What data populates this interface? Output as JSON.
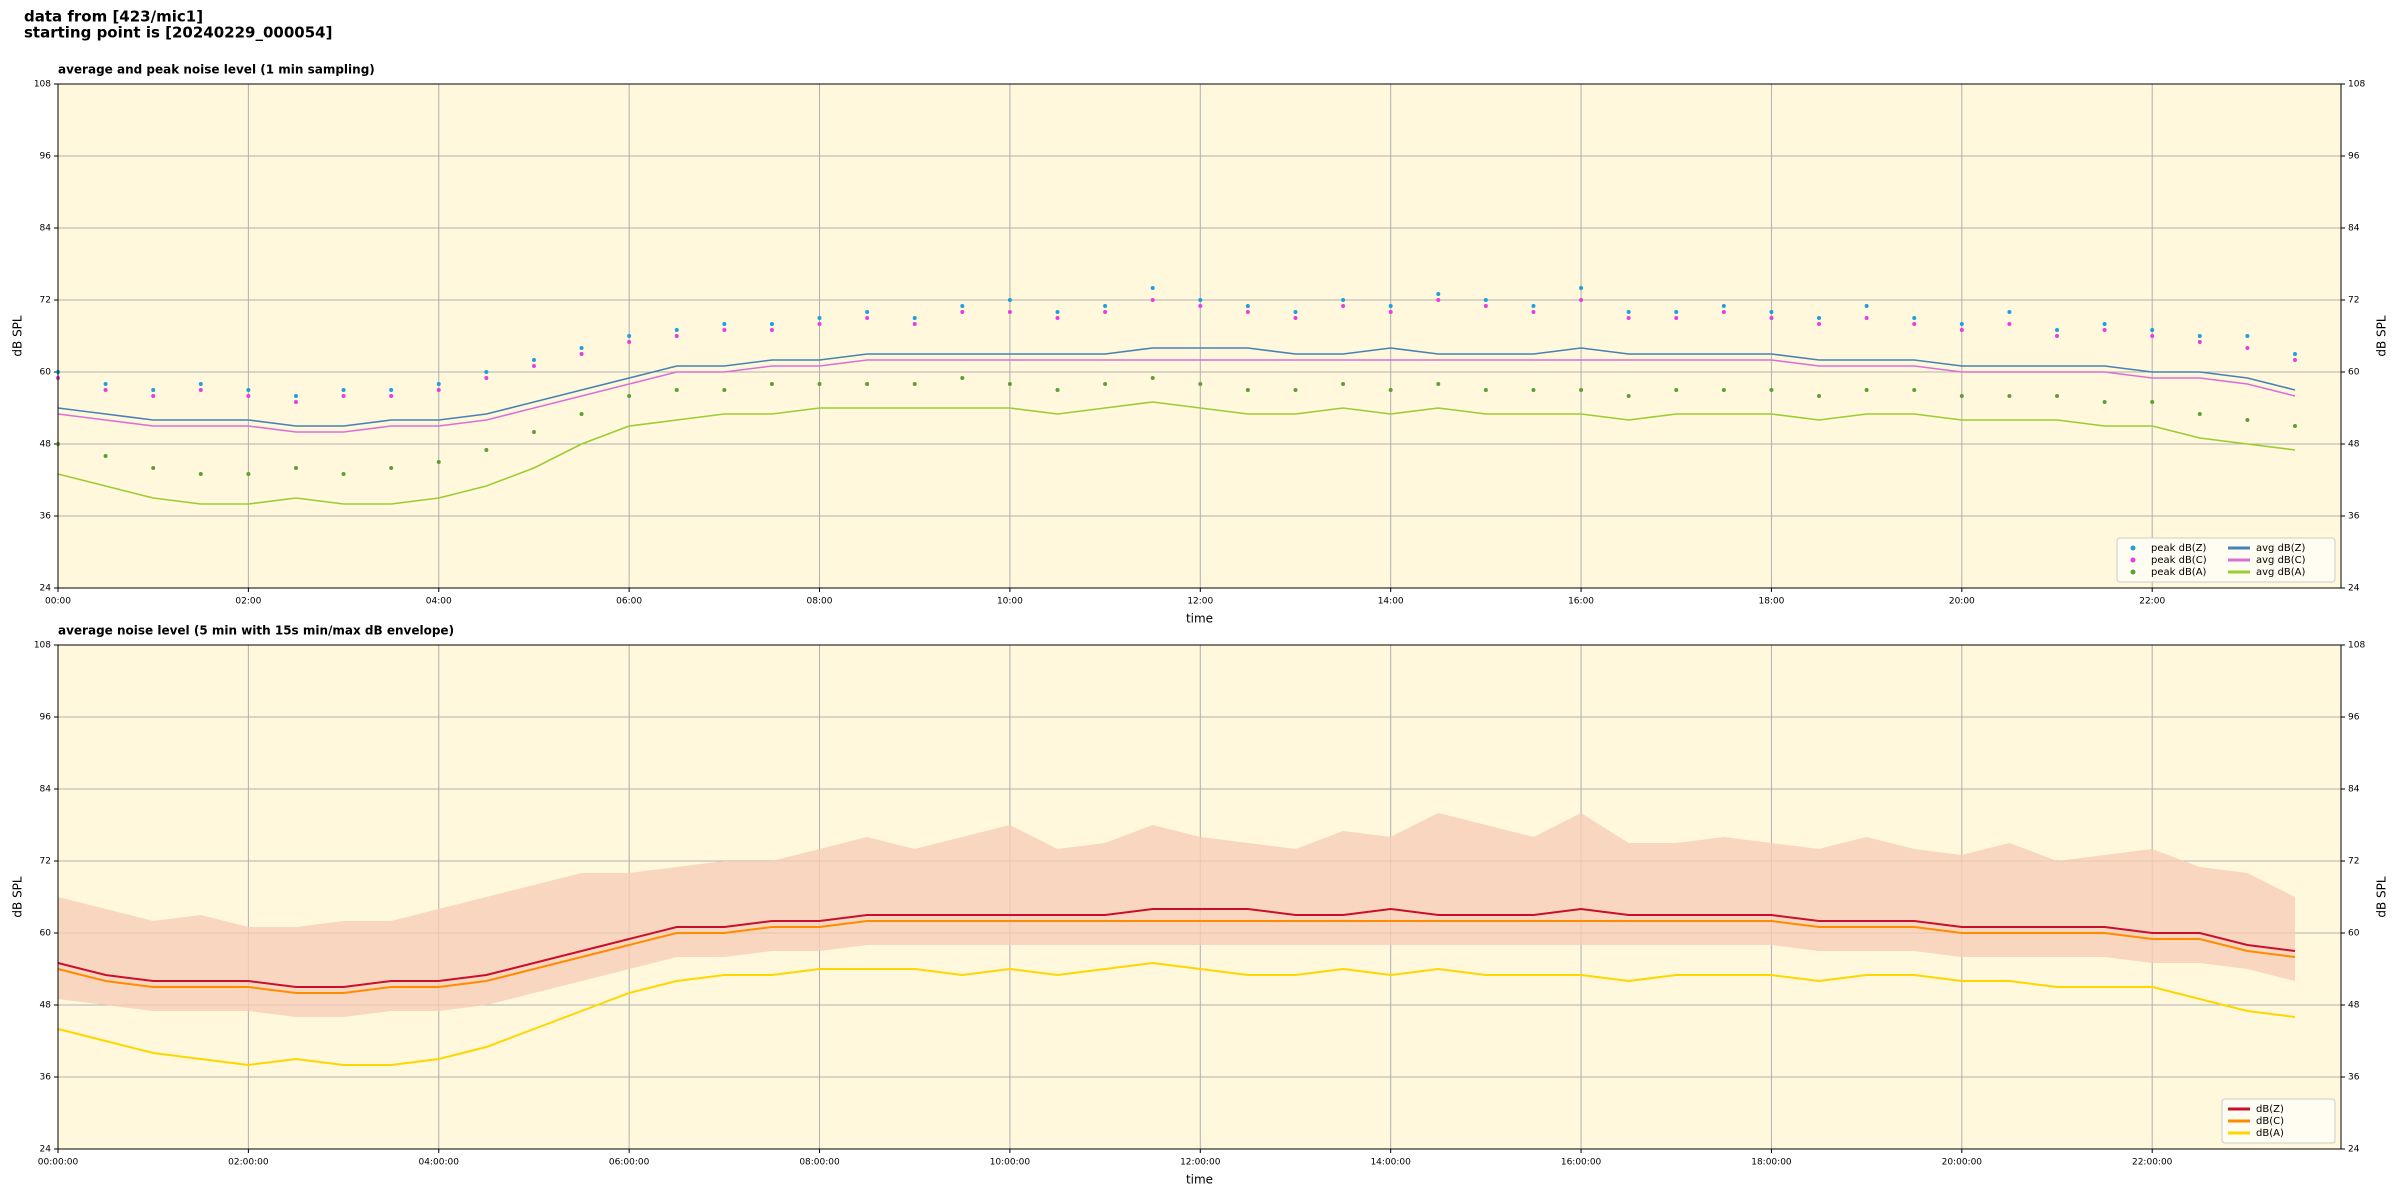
{
  "header": [
    "data from [423/mic1]",
    "starting point is [20240229_000054]"
  ],
  "chart_data": [
    {
      "type": "line",
      "title": "average and peak noise level (1 min sampling)",
      "xlabel": "time",
      "ylabel": "dB SPL",
      "x": [
        "00:00",
        "00:30",
        "01:00",
        "01:30",
        "02:00",
        "02:30",
        "03:00",
        "03:30",
        "04:00",
        "04:30",
        "05:00",
        "05:30",
        "06:00",
        "06:30",
        "07:00",
        "07:30",
        "08:00",
        "08:30",
        "09:00",
        "09:30",
        "10:00",
        "10:30",
        "11:00",
        "11:30",
        "12:00",
        "12:30",
        "13:00",
        "13:30",
        "14:00",
        "14:30",
        "15:00",
        "15:30",
        "16:00",
        "16:30",
        "17:00",
        "17:30",
        "18:00",
        "18:30",
        "19:00",
        "19:30",
        "20:00",
        "20:30",
        "21:00",
        "21:30",
        "22:00",
        "22:30",
        "23:00",
        "23:30"
      ],
      "xlim": [
        "00:00",
        "23:59"
      ],
      "xticks": [
        "00:00",
        "02:00",
        "04:00",
        "06:00",
        "08:00",
        "10:00",
        "12:00",
        "14:00",
        "16:00",
        "18:00",
        "20:00",
        "22:00"
      ],
      "ylim": [
        24,
        108
      ],
      "yticks": [
        24,
        36,
        48,
        60,
        72,
        84,
        96,
        108
      ],
      "grid": true,
      "legend": "lower right",
      "series": [
        {
          "name": "peak dB(Z)",
          "style": "points",
          "color": "#1f9fe0",
          "values": [
            60,
            58,
            57,
            58,
            57,
            56,
            57,
            57,
            58,
            60,
            62,
            64,
            66,
            67,
            68,
            68,
            69,
            70,
            69,
            71,
            72,
            70,
            71,
            74,
            72,
            71,
            70,
            72,
            71,
            73,
            72,
            71,
            74,
            70,
            70,
            71,
            70,
            69,
            71,
            69,
            68,
            70,
            67,
            68,
            67,
            66,
            66,
            63
          ]
        },
        {
          "name": "peak dB(C)",
          "style": "points",
          "color": "#e83ee0",
          "values": [
            59,
            57,
            56,
            57,
            56,
            55,
            56,
            56,
            57,
            59,
            61,
            63,
            65,
            66,
            67,
            67,
            68,
            69,
            68,
            70,
            70,
            69,
            70,
            72,
            71,
            70,
            69,
            71,
            70,
            72,
            71,
            70,
            72,
            69,
            69,
            70,
            69,
            68,
            69,
            68,
            67,
            68,
            66,
            67,
            66,
            65,
            64,
            62
          ]
        },
        {
          "name": "peak dB(A)",
          "style": "points",
          "color": "#5f9e3a",
          "values": [
            48,
            46,
            44,
            43,
            43,
            44,
            43,
            44,
            45,
            47,
            50,
            53,
            56,
            57,
            57,
            58,
            58,
            58,
            58,
            59,
            58,
            57,
            58,
            59,
            58,
            57,
            57,
            58,
            57,
            58,
            57,
            57,
            57,
            56,
            57,
            57,
            57,
            56,
            57,
            57,
            56,
            56,
            56,
            55,
            55,
            53,
            52,
            51
          ]
        },
        {
          "name": "avg dB(Z)",
          "style": "line",
          "color": "#4682b4",
          "values": [
            54,
            53,
            52,
            52,
            52,
            51,
            51,
            52,
            52,
            53,
            55,
            57,
            59,
            61,
            61,
            62,
            62,
            63,
            63,
            63,
            63,
            63,
            63,
            64,
            64,
            64,
            63,
            63,
            64,
            63,
            63,
            63,
            64,
            63,
            63,
            63,
            63,
            62,
            62,
            62,
            61,
            61,
            61,
            61,
            60,
            60,
            59,
            57
          ]
        },
        {
          "name": "avg dB(C)",
          "style": "line",
          "color": "#da70d6",
          "values": [
            53,
            52,
            51,
            51,
            51,
            50,
            50,
            51,
            51,
            52,
            54,
            56,
            58,
            60,
            60,
            61,
            61,
            62,
            62,
            62,
            62,
            62,
            62,
            62,
            62,
            62,
            62,
            62,
            62,
            62,
            62,
            62,
            62,
            62,
            62,
            62,
            62,
            61,
            61,
            61,
            60,
            60,
            60,
            60,
            59,
            59,
            58,
            56
          ]
        },
        {
          "name": "avg dB(A)",
          "style": "line",
          "color": "#9acd32",
          "values": [
            43,
            41,
            39,
            38,
            38,
            39,
            38,
            38,
            39,
            41,
            44,
            48,
            51,
            52,
            53,
            53,
            54,
            54,
            54,
            54,
            54,
            53,
            54,
            55,
            54,
            53,
            53,
            54,
            53,
            54,
            53,
            53,
            53,
            52,
            53,
            53,
            53,
            52,
            53,
            53,
            52,
            52,
            52,
            51,
            51,
            49,
            48,
            47
          ]
        }
      ]
    },
    {
      "type": "line",
      "title": "average noise level (5 min with 15s min/max dB envelope)",
      "xlabel": "time",
      "ylabel": "dB SPL",
      "x": [
        "00:00:00",
        "00:30:00",
        "01:00:00",
        "01:30:00",
        "02:00:00",
        "02:30:00",
        "03:00:00",
        "03:30:00",
        "04:00:00",
        "04:30:00",
        "05:00:00",
        "05:30:00",
        "06:00:00",
        "06:30:00",
        "07:00:00",
        "07:30:00",
        "08:00:00",
        "08:30:00",
        "09:00:00",
        "09:30:00",
        "10:00:00",
        "10:30:00",
        "11:00:00",
        "11:30:00",
        "12:00:00",
        "12:30:00",
        "13:00:00",
        "13:30:00",
        "14:00:00",
        "14:30:00",
        "15:00:00",
        "15:30:00",
        "16:00:00",
        "16:30:00",
        "17:00:00",
        "17:30:00",
        "18:00:00",
        "18:30:00",
        "19:00:00",
        "19:30:00",
        "20:00:00",
        "20:30:00",
        "21:00:00",
        "21:30:00",
        "22:00:00",
        "22:30:00",
        "23:00:00",
        "23:30:00"
      ],
      "xlim": [
        "00:00:00",
        "23:59:00"
      ],
      "xticks": [
        "00:00:00",
        "02:00:00",
        "04:00:00",
        "06:00:00",
        "08:00:00",
        "10:00:00",
        "12:00:00",
        "14:00:00",
        "16:00:00",
        "18:00:00",
        "20:00:00",
        "22:00:00"
      ],
      "ylim": [
        24,
        108
      ],
      "yticks": [
        24,
        36,
        48,
        60,
        72,
        84,
        96,
        108
      ],
      "grid": true,
      "legend": "lower right",
      "band": {
        "color": "#f7cdb8",
        "low": [
          49,
          48,
          47,
          47,
          47,
          46,
          46,
          47,
          47,
          48,
          50,
          52,
          54,
          56,
          56,
          57,
          57,
          58,
          58,
          58,
          58,
          58,
          58,
          58,
          58,
          58,
          58,
          58,
          58,
          58,
          58,
          58,
          58,
          58,
          58,
          58,
          58,
          57,
          57,
          57,
          56,
          56,
          56,
          56,
          55,
          55,
          54,
          52
        ],
        "high": [
          66,
          64,
          62,
          63,
          61,
          61,
          62,
          62,
          64,
          66,
          68,
          70,
          70,
          71,
          72,
          72,
          74,
          76,
          74,
          76,
          78,
          74,
          75,
          78,
          76,
          75,
          74,
          77,
          76,
          80,
          78,
          76,
          80,
          75,
          75,
          76,
          75,
          74,
          76,
          74,
          73,
          75,
          72,
          73,
          74,
          71,
          70,
          66
        ]
      },
      "series": [
        {
          "name": "dB(Z)",
          "style": "line",
          "color": "#c8102e",
          "values": [
            55,
            53,
            52,
            52,
            52,
            51,
            51,
            52,
            52,
            53,
            55,
            57,
            59,
            61,
            61,
            62,
            62,
            63,
            63,
            63,
            63,
            63,
            63,
            64,
            64,
            64,
            63,
            63,
            64,
            63,
            63,
            63,
            64,
            63,
            63,
            63,
            63,
            62,
            62,
            62,
            61,
            61,
            61,
            61,
            60,
            60,
            58,
            57
          ]
        },
        {
          "name": "dB(C)",
          "style": "line",
          "color": "#ff8c00",
          "values": [
            54,
            52,
            51,
            51,
            51,
            50,
            50,
            51,
            51,
            52,
            54,
            56,
            58,
            60,
            60,
            61,
            61,
            62,
            62,
            62,
            62,
            62,
            62,
            62,
            62,
            62,
            62,
            62,
            62,
            62,
            62,
            62,
            62,
            62,
            62,
            62,
            62,
            61,
            61,
            61,
            60,
            60,
            60,
            60,
            59,
            59,
            57,
            56
          ]
        },
        {
          "name": "dB(A)",
          "style": "line",
          "color": "#ffd700",
          "values": [
            44,
            42,
            40,
            39,
            38,
            39,
            38,
            38,
            39,
            41,
            44,
            47,
            50,
            52,
            53,
            53,
            54,
            54,
            54,
            53,
            54,
            53,
            54,
            55,
            54,
            53,
            53,
            54,
            53,
            54,
            53,
            53,
            53,
            52,
            53,
            53,
            53,
            52,
            53,
            53,
            52,
            52,
            51,
            51,
            51,
            49,
            47,
            46
          ]
        }
      ]
    }
  ]
}
